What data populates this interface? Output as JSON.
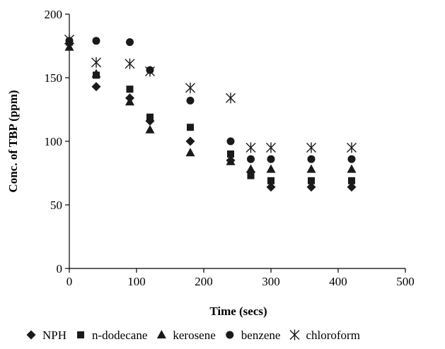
{
  "chart_data": {
    "type": "scatter",
    "title": "",
    "xlabel": "Time (secs)",
    "ylabel": "Conc. of TBP (ppm)",
    "xlim": [
      0,
      500
    ],
    "ylim": [
      0,
      200
    ],
    "xticks": [
      0,
      100,
      200,
      300,
      400,
      500
    ],
    "yticks": [
      0,
      50,
      100,
      150,
      200
    ],
    "grid": false,
    "legend": "bottom",
    "series": [
      {
        "name": "NPH",
        "marker": "diamond-icon",
        "color": "#1a1a1a",
        "points": [
          [
            0,
            177
          ],
          [
            40,
            143
          ],
          [
            90,
            134
          ],
          [
            120,
            116
          ],
          [
            180,
            100
          ],
          [
            240,
            85
          ],
          [
            270,
            76
          ],
          [
            300,
            64
          ],
          [
            360,
            64
          ],
          [
            420,
            64
          ]
        ]
      },
      {
        "name": "n-dodecane",
        "marker": "square-icon",
        "color": "#1a1a1a",
        "points": [
          [
            0,
            178
          ],
          [
            40,
            152
          ],
          [
            90,
            141
          ],
          [
            120,
            119
          ],
          [
            180,
            111
          ],
          [
            240,
            90
          ],
          [
            270,
            73
          ],
          [
            300,
            69
          ],
          [
            360,
            69
          ],
          [
            420,
            69
          ]
        ]
      },
      {
        "name": "kerosene",
        "marker": "triangle-icon",
        "color": "#1a1a1a",
        "points": [
          [
            0,
            174
          ],
          [
            40,
            153
          ],
          [
            90,
            131
          ],
          [
            120,
            109
          ],
          [
            180,
            91
          ],
          [
            240,
            84
          ],
          [
            270,
            78
          ],
          [
            300,
            78
          ],
          [
            360,
            78
          ],
          [
            420,
            78
          ]
        ]
      },
      {
        "name": "benzene",
        "marker": "circle-icon",
        "color": "#1a1a1a",
        "points": [
          [
            0,
            179
          ],
          [
            40,
            179
          ],
          [
            90,
            178
          ],
          [
            120,
            156
          ],
          [
            180,
            132
          ],
          [
            240,
            100
          ],
          [
            270,
            86
          ],
          [
            300,
            86
          ],
          [
            360,
            86
          ],
          [
            420,
            86
          ]
        ]
      },
      {
        "name": "chloroform",
        "marker": "asterisk-icon",
        "color": "#1a1a1a",
        "points": [
          [
            0,
            180
          ],
          [
            40,
            162
          ],
          [
            90,
            161
          ],
          [
            120,
            155
          ],
          [
            180,
            142
          ],
          [
            240,
            134
          ],
          [
            270,
            95
          ],
          [
            300,
            95
          ],
          [
            360,
            95
          ],
          [
            420,
            95
          ]
        ]
      }
    ]
  }
}
